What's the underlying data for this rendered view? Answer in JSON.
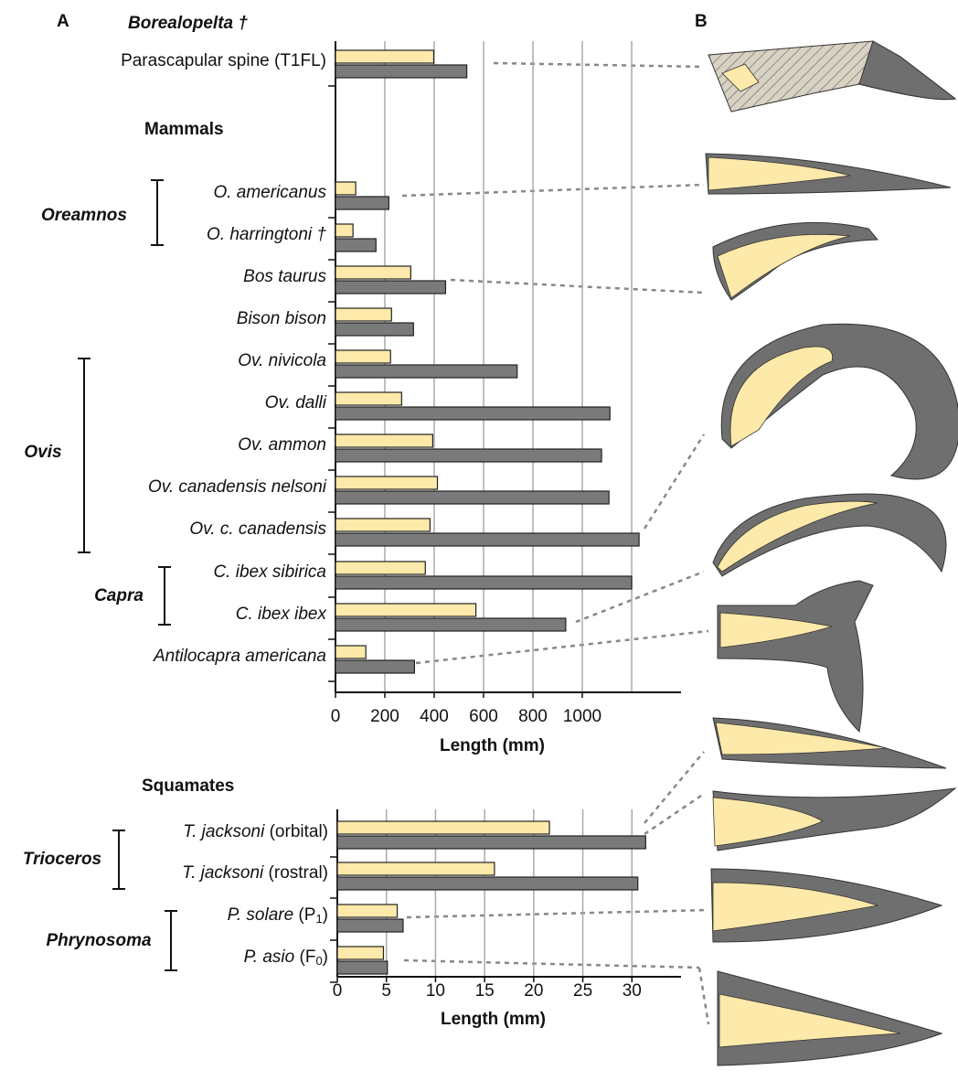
{
  "panel_labels": [
    "A",
    "B"
  ],
  "chart_data": [
    {
      "type": "bar",
      "orientation": "horizontal",
      "headings": [
        "Borealopelta †",
        "Mammals"
      ],
      "groups": [
        "Oreamnos",
        "Ovis",
        "Capra"
      ],
      "categories": [
        "Parascapular spine (T1FL)",
        "O. americanus",
        "O. harringtoni †",
        "Bos taurus",
        "Bison bison",
        "Ov. nivicola",
        "Ov. dalli",
        "Ov. ammon",
        "Ov. canadensis nelsoni",
        "Ov. c. canadensis",
        "C. ibex sibirica",
        "C. ibex ibex",
        "Antilocapra americana"
      ],
      "series": [
        {
          "color": "#fde9a9",
          "values": [
            398,
            82,
            71,
            305,
            227,
            223,
            268,
            394,
            413,
            383,
            364,
            569,
            123
          ]
        },
        {
          "color": "#7a7a7a",
          "values": [
            532,
            216,
            164,
            446,
            316,
            736,
            1112,
            1078,
            1108,
            1230,
            1200,
            933,
            320
          ]
        }
      ],
      "xlim": [
        0,
        1400
      ],
      "xticks": [
        0,
        200,
        400,
        600,
        800,
        1000
      ],
      "xgrid": [
        200,
        400,
        600,
        800,
        1000,
        1200
      ],
      "xlabel": "Length (mm)"
    },
    {
      "type": "bar",
      "orientation": "horizontal",
      "headings": [
        "Squamates"
      ],
      "groups": [
        "Trioceros",
        "Phrynosoma"
      ],
      "categories": [
        "T. jacksoni (orbital)",
        "T. jacksoni (rostral)",
        "P. solare (P1)",
        "P. asio (F0)"
      ],
      "series": [
        {
          "color": "#fde9a9",
          "values": [
            21.6,
            16.0,
            6.1,
            4.7
          ]
        },
        {
          "color": "#7a7a7a",
          "values": [
            31.4,
            30.6,
            6.7,
            5.1
          ]
        }
      ],
      "xlim": [
        0,
        35
      ],
      "xticks": [
        0,
        5,
        10,
        15,
        20,
        25,
        30
      ],
      "xgrid": [
        5,
        10,
        15,
        20,
        25,
        30
      ],
      "xlabel": "Length (mm)"
    }
  ]
}
